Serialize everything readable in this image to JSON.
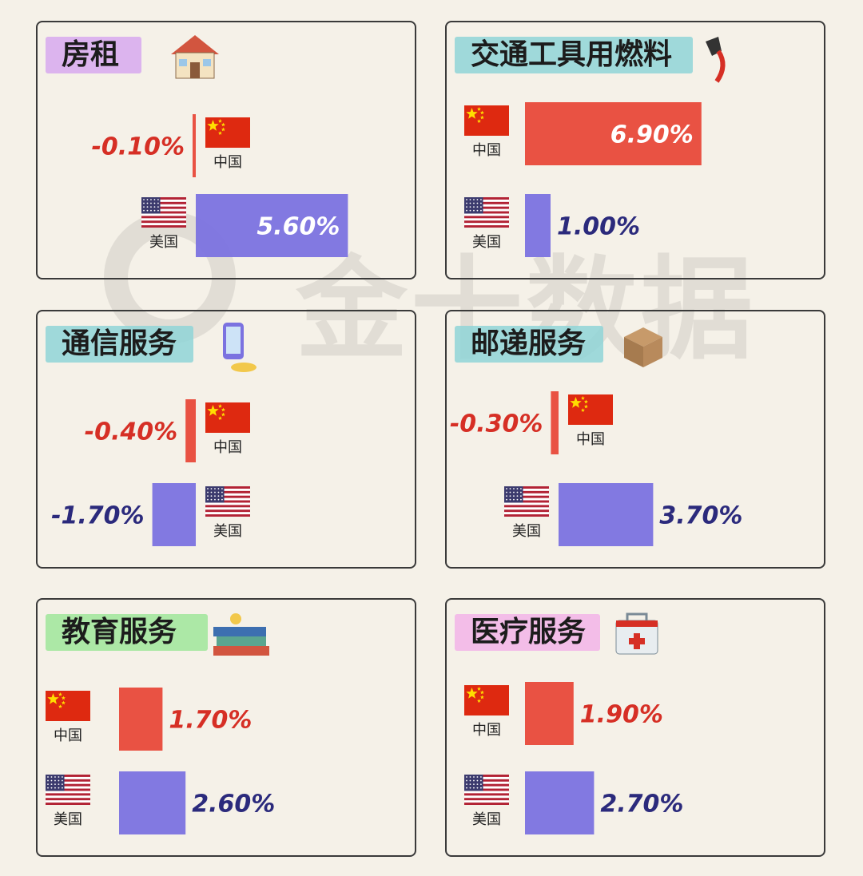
{
  "colors": {
    "china": "#e8493a",
    "usa": "#7b72e0",
    "china_text": "#d62f25",
    "usa_text": "#2b2a7c"
  },
  "country_labels": {
    "china": "中国",
    "usa": "美国"
  },
  "watermark": "金十数据",
  "chart_data": [
    {
      "type": "bar",
      "title": "房租",
      "icon": "house-icon",
      "highlight": "#d7a9ef",
      "series": [
        {
          "name": "中国",
          "value": -0.1,
          "label": "-0.10%"
        },
        {
          "name": "美国",
          "value": 5.6,
          "label": "5.60%"
        }
      ]
    },
    {
      "type": "bar",
      "title": "交通工具用燃料",
      "icon": "fuel-nozzle-icon",
      "highlight": "#8fd5d7",
      "series": [
        {
          "name": "中国",
          "value": 6.9,
          "label": "6.90%"
        },
        {
          "name": "美国",
          "value": 1.0,
          "label": "1.00%"
        }
      ]
    },
    {
      "type": "bar",
      "title": "通信服务",
      "icon": "smartphone-icon",
      "highlight": "#8fd5d7",
      "series": [
        {
          "name": "中国",
          "value": -0.4,
          "label": "-0.40%"
        },
        {
          "name": "美国",
          "value": -1.7,
          "label": "-1.70%"
        }
      ]
    },
    {
      "type": "bar",
      "title": "邮递服务",
      "icon": "package-box-icon",
      "highlight": "#8fd5d7",
      "series": [
        {
          "name": "中国",
          "value": -0.3,
          "label": "-0.30%"
        },
        {
          "name": "美国",
          "value": 3.7,
          "label": "3.70%"
        }
      ]
    },
    {
      "type": "bar",
      "title": "教育服务",
      "icon": "books-icon",
      "highlight": "#9fe69a",
      "series": [
        {
          "name": "中国",
          "value": 1.7,
          "label": "1.70%"
        },
        {
          "name": "美国",
          "value": 2.6,
          "label": "2.60%"
        }
      ]
    },
    {
      "type": "bar",
      "title": "医疗服务",
      "icon": "medical-kit-icon",
      "highlight": "#f2b4e8",
      "series": [
        {
          "name": "中国",
          "value": 1.9,
          "label": "1.90%"
        },
        {
          "name": "美国",
          "value": 2.7,
          "label": "2.70%"
        }
      ]
    }
  ]
}
